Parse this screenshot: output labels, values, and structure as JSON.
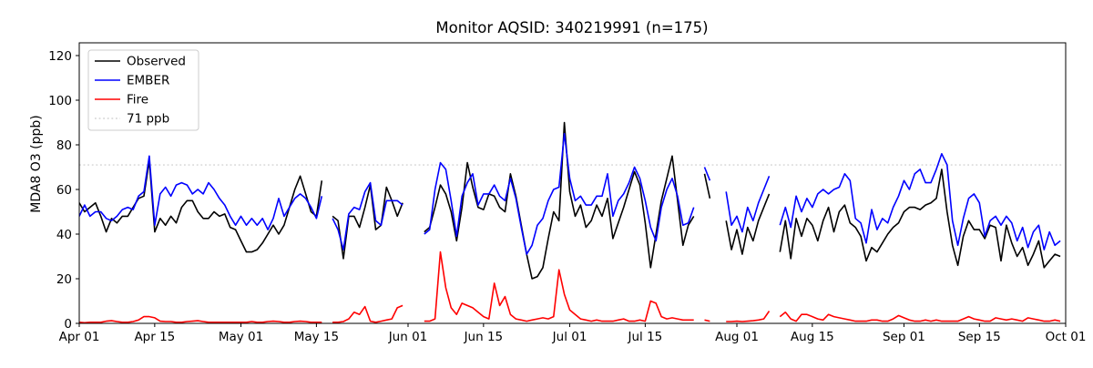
{
  "figure": {
    "title": "Monitor AQSID: 340219991 (n=175)",
    "background_color": "#ffffff"
  },
  "chart_data": {
    "type": "line",
    "title": "Monitor AQSID: 340219991 (n=175)",
    "xlabel": "",
    "ylabel": "MDA8 O3 (ppb)",
    "ylim": [
      0,
      125.7
    ],
    "y_ticks": [
      0,
      20,
      40,
      60,
      80,
      100,
      120
    ],
    "grid": false,
    "legend_position": "upper-left",
    "x_unit": "day offset from Apr 01 (daily data, null = missing day)",
    "n_days": 183,
    "x_tick_labels": [
      "Apr 01",
      "Apr 15",
      "May 01",
      "May 15",
      "Jun 01",
      "Jun 15",
      "Jul 01",
      "Jul 15",
      "Aug 01",
      "Aug 15",
      "Sep 01",
      "Sep 15",
      "Oct 01"
    ],
    "x_tick_day_index": [
      0,
      14,
      30,
      44,
      61,
      75,
      91,
      105,
      122,
      136,
      153,
      167,
      183
    ],
    "threshold_line": {
      "label": "71 ppb",
      "value": 71,
      "color": "#d3d3d3",
      "style": "dotted"
    },
    "axis_color": "#000000",
    "series": [
      {
        "name": "Observed",
        "color": "#000000",
        "style": "solid",
        "values": [
          54,
          50,
          52,
          54,
          48,
          41,
          47,
          45,
          48,
          48,
          52,
          56,
          57,
          73,
          41,
          47,
          44,
          48,
          45,
          52,
          55,
          55,
          50,
          47,
          47,
          50,
          48,
          49,
          43,
          42,
          37,
          32,
          32,
          33,
          36,
          40,
          44,
          40,
          44,
          52,
          60,
          66,
          58,
          50,
          48,
          64,
          null,
          48,
          46,
          29,
          48,
          48,
          43,
          52,
          62,
          42,
          44,
          61,
          55,
          48,
          54,
          null,
          null,
          null,
          41,
          43,
          52,
          62,
          58,
          50,
          37,
          52,
          72,
          61,
          52,
          51,
          58,
          57,
          52,
          50,
          67,
          57,
          44,
          31,
          20,
          21,
          25,
          38,
          50,
          46,
          90,
          59,
          48,
          53,
          43,
          46,
          53,
          48,
          56,
          38,
          45,
          52,
          60,
          68,
          62,
          45,
          25,
          40,
          55,
          65,
          75,
          55,
          35,
          44,
          48,
          null,
          67,
          56,
          null,
          null,
          46,
          33,
          42,
          31,
          43,
          37,
          46,
          52,
          58,
          null,
          32,
          46,
          29,
          47,
          39,
          47,
          44,
          37,
          46,
          52,
          41,
          50,
          53,
          45,
          43,
          39,
          28,
          34,
          32,
          36,
          40,
          43,
          45,
          50,
          52,
          52,
          51,
          53,
          54,
          56,
          69,
          50,
          35,
          26,
          39,
          46,
          42,
          42,
          38,
          44,
          43,
          28,
          44,
          36,
          30,
          34,
          26,
          31,
          37,
          25,
          28,
          31,
          30
        ]
      },
      {
        "name": "EMBER",
        "color": "#0000ff",
        "style": "solid",
        "values": [
          48,
          53,
          48,
          50,
          50,
          47,
          46,
          48,
          51,
          52,
          51,
          57,
          59,
          75,
          44,
          58,
          61,
          57,
          62,
          63,
          62,
          58,
          60,
          58,
          63,
          60,
          56,
          53,
          48,
          44,
          48,
          44,
          47,
          44,
          47,
          42,
          47,
          56,
          48,
          52,
          56,
          58,
          56,
          52,
          47,
          57,
          null,
          47,
          42,
          33,
          49,
          52,
          51,
          59,
          63,
          46,
          44,
          55,
          55,
          55,
          53,
          null,
          null,
          null,
          40,
          42,
          60,
          72,
          69,
          55,
          39,
          57,
          63,
          67,
          53,
          58,
          58,
          62,
          57,
          55,
          65,
          56,
          43,
          31,
          35,
          44,
          47,
          55,
          60,
          61,
          85,
          65,
          55,
          57,
          53,
          53,
          57,
          57,
          67,
          48,
          55,
          58,
          63,
          70,
          65,
          55,
          43,
          37,
          52,
          60,
          65,
          57,
          44,
          45,
          52,
          null,
          70,
          64,
          null,
          null,
          59,
          44,
          48,
          41,
          52,
          46,
          54,
          60,
          66,
          null,
          44,
          52,
          43,
          57,
          50,
          56,
          52,
          58,
          60,
          58,
          60,
          61,
          67,
          64,
          47,
          45,
          36,
          51,
          42,
          47,
          45,
          52,
          57,
          64,
          60,
          67,
          69,
          63,
          63,
          69,
          76,
          71,
          46,
          35,
          47,
          56,
          58,
          54,
          39,
          46,
          48,
          44,
          48,
          45,
          37,
          43,
          34,
          41,
          44,
          33,
          41,
          35,
          37
        ]
      },
      {
        "name": "Fire",
        "color": "#ff0000",
        "style": "solid",
        "values": [
          0.5,
          0.3,
          0.5,
          0.5,
          0.5,
          1,
          1.2,
          0.8,
          0.5,
          0.5,
          0.8,
          1.5,
          3,
          3,
          2.5,
          1,
          0.8,
          0.8,
          0.5,
          0.5,
          0.8,
          1,
          1.2,
          0.8,
          0.5,
          0.5,
          0.5,
          0.5,
          0.5,
          0.5,
          0.5,
          0.5,
          0.8,
          0.5,
          0.5,
          0.8,
          1,
          0.8,
          0.5,
          0.5,
          0.8,
          1,
          0.8,
          0.5,
          0.5,
          0.5,
          null,
          0.5,
          0.5,
          0.8,
          2,
          5,
          4,
          7.5,
          1,
          0.5,
          1,
          1.5,
          2,
          7,
          8,
          null,
          null,
          null,
          1,
          1,
          2,
          32,
          16,
          7,
          4,
          9,
          8,
          7,
          5,
          3,
          2,
          18,
          8,
          12,
          4,
          2,
          1.5,
          1,
          1.5,
          2,
          2.5,
          2,
          3,
          24,
          13,
          6,
          4,
          2,
          1.5,
          1,
          1.5,
          1,
          1,
          1,
          1.5,
          2,
          1,
          1,
          1.5,
          1,
          10,
          9,
          3,
          2,
          2.5,
          2,
          1.5,
          1.5,
          1.5,
          null,
          1.5,
          1,
          null,
          null,
          0.8,
          0.8,
          1,
          0.8,
          1,
          1.2,
          1.5,
          2,
          5.5,
          null,
          3,
          5,
          2,
          1,
          4,
          4,
          3,
          2,
          1.5,
          4,
          3,
          2.5,
          2,
          1.5,
          1,
          1,
          1,
          1.5,
          1.5,
          1,
          1,
          2,
          3.5,
          2.5,
          1.5,
          1,
          1,
          1.5,
          1,
          1.5,
          1,
          1,
          1,
          1,
          2,
          3,
          2,
          1.5,
          1,
          1,
          2.5,
          2,
          1.5,
          2,
          1.5,
          1,
          2.5,
          2,
          1.5,
          1,
          1,
          1.5,
          1
        ]
      }
    ],
    "legend_items": [
      "Observed",
      "EMBER",
      "Fire",
      "71 ppb"
    ]
  }
}
